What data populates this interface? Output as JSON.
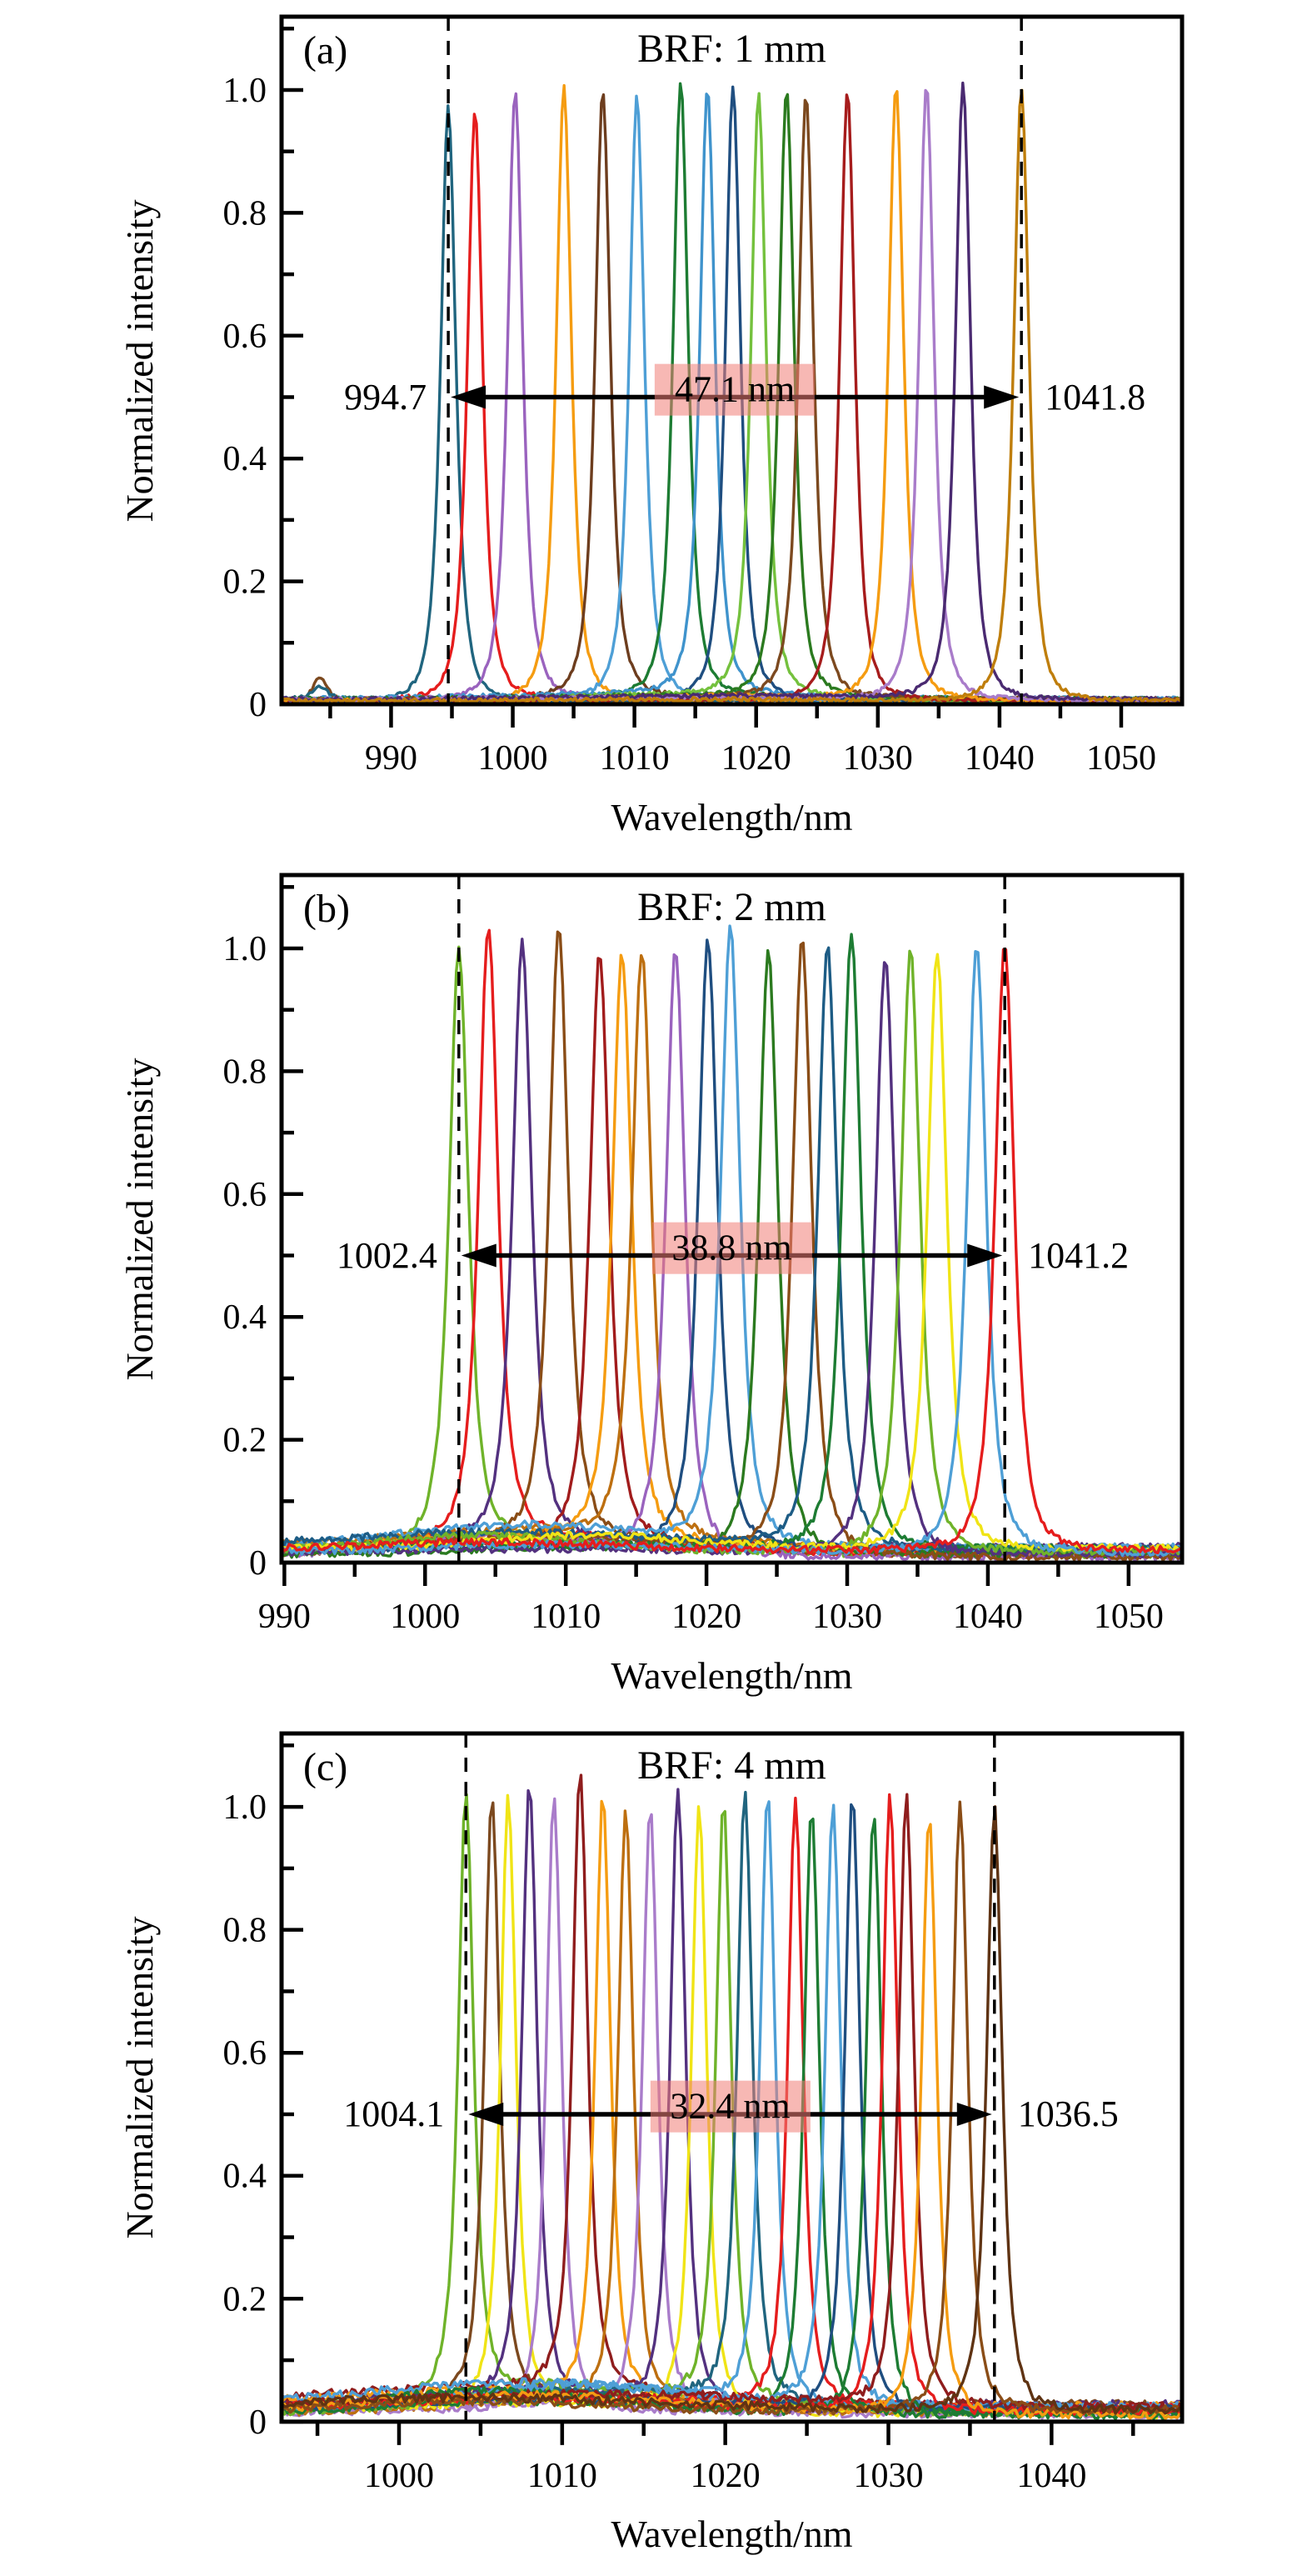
{
  "figure": {
    "axis_color": "#000000",
    "background": "#ffffff",
    "highlight_color": "#f2a5a2",
    "highlight_rgba": "rgba(240,125,118,0.55)"
  },
  "chart_data": [
    {
      "type": "line",
      "panel_label": "(a)",
      "title": "BRF: 1 mm",
      "xlabel": "Wavelength/nm",
      "ylabel": "Normalized intensity",
      "xlim": [
        981.0,
        1055.0
      ],
      "ylim": [
        0,
        1.12
      ],
      "grid": false,
      "x_major_ticks": [
        990,
        1000,
        1010,
        1020,
        1030,
        1040,
        1050
      ],
      "x_minor_step": 5,
      "y_major_ticks": [
        0,
        0.2,
        0.4,
        0.6,
        0.8,
        1.0
      ],
      "y_tick_labels": [
        "0",
        "0.2",
        "0.4",
        "0.6",
        "0.8",
        "1.0"
      ],
      "tuning": {
        "min_nm": 994.7,
        "max_nm": 1041.8,
        "span_nm": 47.1,
        "min_label": "994.7",
        "max_label": "1041.8",
        "span_label": "47.1 nm",
        "arrow_y": 0.5
      },
      "peak_hwhm_nm": 0.95,
      "baseline": {
        "level": 0.006,
        "hump_amp": 0.007,
        "hump_center_nm": 1015,
        "hump_width_nm": 15,
        "noise": 0.0035
      },
      "peaks": [
        {
          "center_nm": 984.2,
          "height": 0.04,
          "color": "#7c491f"
        },
        {
          "center_nm": 984.1,
          "height": 0.022,
          "color": "#20657f"
        },
        {
          "center_nm": 994.7,
          "height": 0.97,
          "color": "#20657f"
        },
        {
          "center_nm": 996.9,
          "height": 0.96,
          "color": "#e51d1d"
        },
        {
          "center_nm": 1000.2,
          "height": 0.99,
          "color": "#9a63be"
        },
        {
          "center_nm": 1004.2,
          "height": 1.0,
          "color": "#f59c11"
        },
        {
          "center_nm": 1007.4,
          "height": 0.99,
          "color": "#6d3d1e"
        },
        {
          "center_nm": 1010.2,
          "height": 0.98,
          "color": "#4e9fd6"
        },
        {
          "center_nm": 1013.8,
          "height": 1.0,
          "color": "#1d7c33"
        },
        {
          "center_nm": 1016.0,
          "height": 0.99,
          "color": "#3f93cc"
        },
        {
          "center_nm": 1018.1,
          "height": 1.0,
          "color": "#1f4e80"
        },
        {
          "center_nm": 1020.2,
          "height": 0.98,
          "color": "#74c13d"
        },
        {
          "center_nm": 1022.5,
          "height": 0.99,
          "color": "#2b7a1f"
        },
        {
          "center_nm": 1024.1,
          "height": 0.98,
          "color": "#7c491f"
        },
        {
          "center_nm": 1027.5,
          "height": 0.99,
          "color": "#a61c1c"
        },
        {
          "center_nm": 1031.5,
          "height": 1.0,
          "color": "#f59c11"
        },
        {
          "center_nm": 1034.0,
          "height": 1.0,
          "color": "#a97cca"
        },
        {
          "center_nm": 1037.0,
          "height": 1.0,
          "color": "#4a2a71"
        },
        {
          "center_nm": 1041.8,
          "height": 1.0,
          "color": "#bf7e0c"
        }
      ]
    },
    {
      "type": "line",
      "panel_label": "(b)",
      "title": "BRF: 2 mm",
      "xlabel": "Wavelength/nm",
      "ylabel": "Normalized intensity",
      "xlim": [
        989.8,
        1053.8
      ],
      "ylim": [
        0,
        1.12
      ],
      "grid": false,
      "x_major_ticks": [
        990,
        1000,
        1010,
        1020,
        1030,
        1040,
        1050
      ],
      "x_minor_step": 5,
      "y_major_ticks": [
        0,
        0.2,
        0.4,
        0.6,
        0.8,
        1.0
      ],
      "y_tick_labels": [
        "0",
        "0.2",
        "0.4",
        "0.6",
        "0.8",
        "1.0"
      ],
      "tuning": {
        "min_nm": 1002.4,
        "max_nm": 1041.2,
        "span_nm": 38.8,
        "min_label": "1002.4",
        "max_label": "1041.2",
        "span_label": "38.8 nm",
        "arrow_y": 0.5
      },
      "peak_hwhm_nm": 1.05,
      "baseline": {
        "level": 0.018,
        "hump_amp": 0.028,
        "hump_center_nm": 1008,
        "hump_width_nm": 13,
        "noise": 0.006
      },
      "peaks": [
        {
          "center_nm": 1002.4,
          "height": 0.97,
          "color": "#6fb32a"
        },
        {
          "center_nm": 1004.5,
          "height": 1.0,
          "color": "#e51d1d"
        },
        {
          "center_nm": 1006.9,
          "height": 0.97,
          "color": "#53317f"
        },
        {
          "center_nm": 1009.5,
          "height": 0.99,
          "color": "#8a4d17"
        },
        {
          "center_nm": 1012.4,
          "height": 0.96,
          "color": "#a11c1c"
        },
        {
          "center_nm": 1014.0,
          "height": 0.95,
          "color": "#f59c11"
        },
        {
          "center_nm": 1015.4,
          "height": 0.95,
          "color": "#bd6f10"
        },
        {
          "center_nm": 1017.8,
          "height": 0.98,
          "color": "#9a63be"
        },
        {
          "center_nm": 1020.1,
          "height": 0.99,
          "color": "#1f4e80"
        },
        {
          "center_nm": 1021.7,
          "height": 1.0,
          "color": "#4e9fd6"
        },
        {
          "center_nm": 1024.4,
          "height": 0.98,
          "color": "#2b7a1f"
        },
        {
          "center_nm": 1026.8,
          "height": 1.0,
          "color": "#8a4d17"
        },
        {
          "center_nm": 1028.6,
          "height": 0.98,
          "color": "#1d5c85"
        },
        {
          "center_nm": 1030.3,
          "height": 1.0,
          "color": "#1d7c33"
        },
        {
          "center_nm": 1032.7,
          "height": 0.97,
          "color": "#53317f"
        },
        {
          "center_nm": 1034.5,
          "height": 0.98,
          "color": "#6fb32a"
        },
        {
          "center_nm": 1036.4,
          "height": 0.97,
          "color": "#f0e416"
        },
        {
          "center_nm": 1039.2,
          "height": 0.99,
          "color": "#4e9fd6"
        },
        {
          "center_nm": 1041.2,
          "height": 0.99,
          "color": "#e51d1d"
        }
      ]
    },
    {
      "type": "line",
      "panel_label": "(c)",
      "title": "BRF: 4 mm",
      "xlabel": "Wavelength/nm",
      "ylabel": "Normalized intensity",
      "xlim": [
        992.8,
        1048.0
      ],
      "ylim": [
        0,
        1.12
      ],
      "grid": false,
      "x_major_ticks": [
        1000,
        1010,
        1020,
        1030,
        1040
      ],
      "x_minor_step": 5,
      "y_major_ticks": [
        0,
        0.2,
        0.4,
        0.6,
        0.8,
        1.0
      ],
      "y_tick_labels": [
        "0",
        "0.2",
        "0.4",
        "0.6",
        "0.8",
        "1.0"
      ],
      "tuning": {
        "min_nm": 1004.1,
        "max_nm": 1036.5,
        "span_nm": 32.4,
        "min_label": "1004.1",
        "max_label": "1036.5",
        "span_label": "32.4 nm",
        "arrow_y": 0.5
      },
      "peak_hwhm_nm": 0.72,
      "baseline": {
        "level": 0.02,
        "hump_amp": 0.03,
        "hump_center_nm": 1009,
        "hump_width_nm": 11,
        "noise": 0.007
      },
      "peaks": [
        {
          "center_nm": 1004.1,
          "height": 0.98,
          "color": "#6fb32a"
        },
        {
          "center_nm": 1005.7,
          "height": 0.98,
          "color": "#7c491f"
        },
        {
          "center_nm": 1006.7,
          "height": 0.99,
          "color": "#f0e416"
        },
        {
          "center_nm": 1008.0,
          "height": 1.0,
          "color": "#53317f"
        },
        {
          "center_nm": 1009.5,
          "height": 1.0,
          "color": "#a97cca"
        },
        {
          "center_nm": 1011.1,
          "height": 1.0,
          "color": "#8f1d1d"
        },
        {
          "center_nm": 1012.5,
          "height": 0.98,
          "color": "#f59c11"
        },
        {
          "center_nm": 1013.9,
          "height": 0.96,
          "color": "#bd6f10"
        },
        {
          "center_nm": 1015.4,
          "height": 0.97,
          "color": "#a97cca"
        },
        {
          "center_nm": 1017.1,
          "height": 1.0,
          "color": "#53317f"
        },
        {
          "center_nm": 1018.4,
          "height": 0.98,
          "color": "#f0e416"
        },
        {
          "center_nm": 1019.9,
          "height": 0.97,
          "color": "#6fb32a"
        },
        {
          "center_nm": 1021.2,
          "height": 0.99,
          "color": "#20657f"
        },
        {
          "center_nm": 1022.6,
          "height": 0.99,
          "color": "#4e9fd6"
        },
        {
          "center_nm": 1024.3,
          "height": 0.98,
          "color": "#e51d1d"
        },
        {
          "center_nm": 1025.3,
          "height": 0.99,
          "color": "#1d7c33"
        },
        {
          "center_nm": 1026.6,
          "height": 0.98,
          "color": "#4e9fd6"
        },
        {
          "center_nm": 1027.8,
          "height": 1.0,
          "color": "#1f4e80"
        },
        {
          "center_nm": 1029.1,
          "height": 0.98,
          "color": "#1d7c33"
        },
        {
          "center_nm": 1030.1,
          "height": 1.0,
          "color": "#e51d1d"
        },
        {
          "center_nm": 1031.1,
          "height": 0.99,
          "color": "#8f1d1d"
        },
        {
          "center_nm": 1032.5,
          "height": 0.97,
          "color": "#f59c11"
        },
        {
          "center_nm": 1034.4,
          "height": 0.99,
          "color": "#8a4d17"
        },
        {
          "center_nm": 1036.5,
          "height": 0.98,
          "color": "#5f3313"
        }
      ]
    }
  ]
}
